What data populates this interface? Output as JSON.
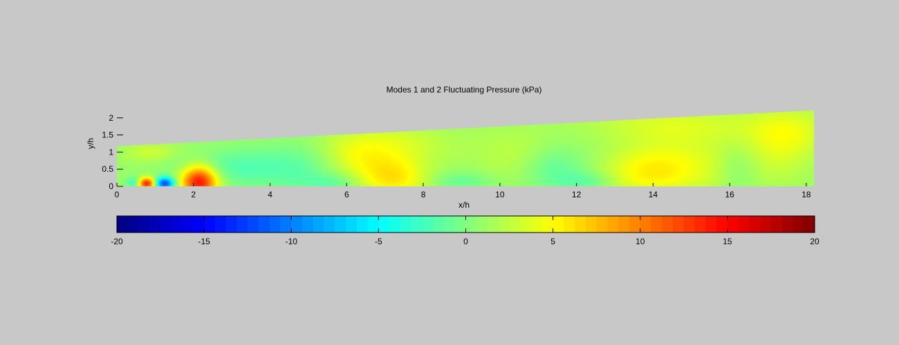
{
  "chart_data": {
    "type": "heatmap",
    "title": "Modes 1 and 2 Fluctuating Pressure (kPa)",
    "xlabel": "x/h",
    "ylabel": "y/h",
    "xlim": [
      0,
      18.2
    ],
    "ylim": [
      0,
      2.25
    ],
    "x_ticks": [
      0,
      2,
      4,
      6,
      8,
      10,
      12,
      14,
      16,
      18
    ],
    "y_ticks": [
      0,
      0.5,
      1,
      1.5,
      2
    ],
    "domain_top_boundary": [
      [
        0,
        1.17
      ],
      [
        18.2,
        2.22
      ]
    ],
    "colormap": "jet",
    "color_limits": [
      -20,
      20
    ],
    "colorbar_ticks": [
      -20,
      -15,
      -10,
      -5,
      0,
      5,
      10,
      15,
      20
    ],
    "colorbar_location": "bottom",
    "features": [
      {
        "x": 0.78,
        "y": 0.08,
        "value": 13,
        "sx": 0.16,
        "sy": 0.12
      },
      {
        "x": 1.25,
        "y": 0.08,
        "value": -13,
        "sx": 0.18,
        "sy": 0.13
      },
      {
        "x": 0.45,
        "y": 0.1,
        "value": -4,
        "sx": 0.14,
        "sy": 0.12
      },
      {
        "x": 2.15,
        "y": 0.15,
        "value": 14,
        "sx": 0.33,
        "sy": 0.33
      },
      {
        "x": 2.15,
        "y": 0.55,
        "value": -2,
        "sx": 0.6,
        "sy": 0.3
      },
      {
        "x": 0.9,
        "y": 1.0,
        "value": 2,
        "sx": 0.5,
        "sy": 0.2
      },
      {
        "x": 3.5,
        "y": 0.55,
        "value": -2.5,
        "sx": 0.7,
        "sy": 0.4
      },
      {
        "x": 4.8,
        "y": 0.5,
        "value": -2,
        "sx": 0.6,
        "sy": 0.6
      },
      {
        "x": 5.7,
        "y": 0.1,
        "value": -2,
        "sx": 0.5,
        "sy": 0.2
      },
      {
        "x": 7.2,
        "y": 0.25,
        "value": 5,
        "sx": 0.65,
        "sy": 0.45
      },
      {
        "x": 7.0,
        "y": 1.25,
        "value": 2.5,
        "sx": 1.2,
        "sy": 0.4
      },
      {
        "x": 6.3,
        "y": 0.8,
        "value": 2,
        "sx": 0.6,
        "sy": 0.4
      },
      {
        "x": 9.0,
        "y": 0.15,
        "value": -2,
        "sx": 0.6,
        "sy": 0.2
      },
      {
        "x": 10.5,
        "y": 0.9,
        "value": 1.5,
        "sx": 0.8,
        "sy": 0.6
      },
      {
        "x": 11.4,
        "y": 0.5,
        "value": -2.5,
        "sx": 0.6,
        "sy": 0.5
      },
      {
        "x": 12.3,
        "y": 0.15,
        "value": -2,
        "sx": 0.5,
        "sy": 0.2
      },
      {
        "x": 13.8,
        "y": 0.4,
        "value": 3.5,
        "sx": 0.8,
        "sy": 0.5
      },
      {
        "x": 15.0,
        "y": 0.6,
        "value": 2.5,
        "sx": 1.0,
        "sy": 0.6
      },
      {
        "x": 16.2,
        "y": 0.5,
        "value": -1.5,
        "sx": 0.4,
        "sy": 0.5
      },
      {
        "x": 17.3,
        "y": 0.8,
        "value": 1.5,
        "sx": 0.6,
        "sy": 0.6
      },
      {
        "x": 17.5,
        "y": 1.6,
        "value": 3,
        "sx": 0.8,
        "sy": 0.5
      },
      {
        "x": 14.5,
        "y": 1.8,
        "value": 2.5,
        "sx": 1.5,
        "sy": 0.4
      }
    ],
    "background_value": 1.0
  }
}
